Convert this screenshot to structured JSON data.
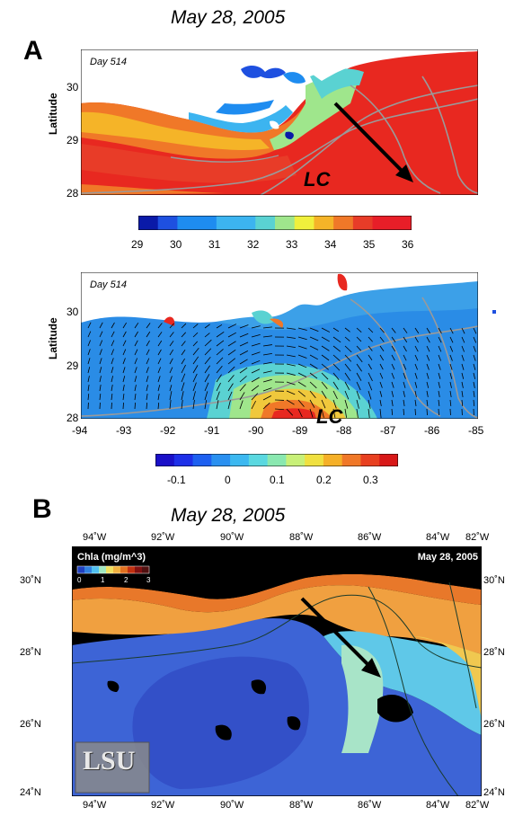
{
  "panel_a": {
    "label": "A",
    "title": "May 28, 2005",
    "map_top": {
      "day_label": "Day 514",
      "lc_label": "LC",
      "ylabel": "Latitude",
      "y_ticks": [
        "30",
        "29",
        "28"
      ]
    },
    "colorbar_top": {
      "ticks": [
        "29",
        "30",
        "31",
        "32",
        "33",
        "34",
        "35",
        "36"
      ]
    },
    "map_bottom": {
      "day_label": "Day 514",
      "lc_label": "LC",
      "ylabel": "Latitude",
      "y_ticks": [
        "30",
        "29",
        "28"
      ],
      "x_ticks": [
        "-94",
        "-93",
        "-92",
        "-91",
        "-90",
        "-89",
        "-88",
        "-87",
        "-86",
        "-85"
      ]
    },
    "colorbar_bottom": {
      "ticks": [
        "-0.1",
        "0",
        "0.1",
        "0.2",
        "0.3"
      ]
    }
  },
  "panel_b": {
    "label": "B",
    "title": "May 28, 2005",
    "legend_title": "Chla (mg/m^3)",
    "legend_ticks": [
      "0",
      "1",
      "2",
      "3"
    ],
    "date_tag": "May 28, 2005",
    "lon_ticks": [
      "94˚W",
      "92˚W",
      "90˚W",
      "88˚W",
      "86˚W",
      "84˚W",
      "82˚W"
    ],
    "lat_ticks": [
      "30˚N",
      "28˚N",
      "26˚N",
      "24˚N"
    ],
    "logo": "LSU"
  },
  "colors": {
    "sal_ramp": [
      "#0a1aa8",
      "#1e50e0",
      "#1e8cf0",
      "#3cb4f0",
      "#5ad2d2",
      "#9fe68c",
      "#f0f03c",
      "#f5b428",
      "#f07828",
      "#e83c28",
      "#e81e28"
    ],
    "ocean_blue": "#3d64d6",
    "coastal_orange": "#f0a040"
  }
}
